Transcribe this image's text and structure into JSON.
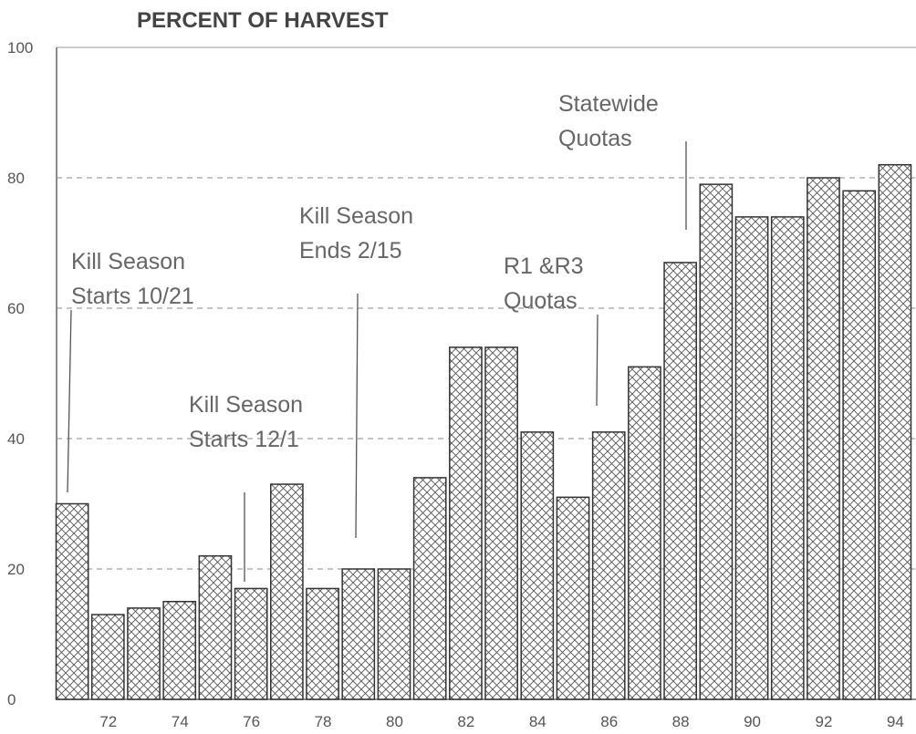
{
  "chart_data": {
    "type": "bar",
    "title": "PERCENT OF HARVEST",
    "categories": [
      null,
      "72",
      null,
      "74",
      null,
      "76",
      null,
      "78",
      null,
      "80",
      null,
      "82",
      null,
      "84",
      null,
      "86",
      null,
      "88",
      null,
      "90",
      null,
      "92",
      null,
      "94"
    ],
    "values": [
      30,
      13,
      14,
      15,
      22,
      17,
      33,
      17,
      20,
      20,
      34,
      54,
      54,
      41,
      31,
      41,
      51,
      67,
      79,
      74,
      74,
      80,
      78,
      82
    ],
    "color": "#555555",
    "ylim": [
      0,
      100
    ],
    "yticks": [
      0,
      20,
      40,
      60,
      80,
      100
    ],
    "grid": true,
    "annotations": [
      {
        "lines": [
          "Kill Season",
          "Starts 10/21"
        ]
      },
      {
        "lines": [
          "Kill Season",
          "Starts 12/1"
        ]
      },
      {
        "lines": [
          "Kill Season",
          "Ends 2/15"
        ]
      },
      {
        "lines": [
          "R1 &R3",
          "Quotas"
        ]
      },
      {
        "lines": [
          "Statewide",
          "Quotas"
        ]
      }
    ]
  }
}
